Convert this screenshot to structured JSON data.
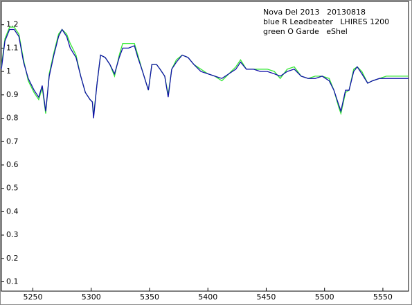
{
  "chart_data": {
    "type": "line",
    "title": "Nova Del 2013   20130818",
    "x": [
      5223,
      5226,
      5230,
      5234,
      5238,
      5242,
      5246,
      5251,
      5255,
      5258,
      5261,
      5264,
      5268,
      5272,
      5275,
      5279,
      5282,
      5287,
      5291,
      5295,
      5299,
      5301,
      5302,
      5305,
      5308,
      5312,
      5316,
      5320,
      5324,
      5327,
      5332,
      5337,
      5340,
      5344,
      5349,
      5352,
      5356,
      5359,
      5363,
      5366,
      5369,
      5373,
      5378,
      5383,
      5388,
      5394,
      5400,
      5406,
      5412,
      5418,
      5424,
      5428,
      5433,
      5439,
      5445,
      5451,
      5457,
      5462,
      5468,
      5474,
      5480,
      5486,
      5492,
      5498,
      5504,
      5508,
      5512,
      5514,
      5518,
      5521,
      5525,
      5528,
      5532,
      5537,
      5541,
      5547,
      5553,
      5559,
      5565,
      5572
    ],
    "series": [
      {
        "name": "blue R Leadbeater   LHIRES 1200",
        "color": "#1010a8",
        "values": [
          1.01,
          1.13,
          1.18,
          1.18,
          1.15,
          1.04,
          0.97,
          0.92,
          0.89,
          0.94,
          0.83,
          0.98,
          1.07,
          1.15,
          1.18,
          1.15,
          1.1,
          1.06,
          0.98,
          0.91,
          0.88,
          0.87,
          0.8,
          0.95,
          1.07,
          1.06,
          1.03,
          0.99,
          1.06,
          1.1,
          1.1,
          1.11,
          1.06,
          1.0,
          0.92,
          1.03,
          1.03,
          1.01,
          0.98,
          0.89,
          1.01,
          1.04,
          1.07,
          1.06,
          1.03,
          1.0,
          0.99,
          0.98,
          0.97,
          0.99,
          1.01,
          1.04,
          1.01,
          1.01,
          1.0,
          1.0,
          0.99,
          0.98,
          1.0,
          1.01,
          0.98,
          0.97,
          0.97,
          0.98,
          0.96,
          0.92,
          0.86,
          0.83,
          0.92,
          0.92,
          1.0,
          1.02,
          0.99,
          0.95,
          0.96,
          0.97,
          0.97,
          0.97,
          0.97,
          0.97
        ]
      },
      {
        "name": "green O Garde   eShel",
        "color": "#33e833",
        "values": [
          1.02,
          1.14,
          1.19,
          1.19,
          1.16,
          1.05,
          0.96,
          0.91,
          0.88,
          0.93,
          0.82,
          0.99,
          1.08,
          1.16,
          1.18,
          1.16,
          1.12,
          1.07,
          0.98,
          0.91,
          0.88,
          0.87,
          0.81,
          0.95,
          1.07,
          1.06,
          1.03,
          0.98,
          1.07,
          1.12,
          1.12,
          1.12,
          1.07,
          1.0,
          0.92,
          1.03,
          1.03,
          1.01,
          0.98,
          0.9,
          1.01,
          1.05,
          1.07,
          1.06,
          1.03,
          1.01,
          0.99,
          0.98,
          0.96,
          0.99,
          1.02,
          1.05,
          1.01,
          1.01,
          1.01,
          1.01,
          1.0,
          0.97,
          1.01,
          1.02,
          0.98,
          0.97,
          0.98,
          0.98,
          0.97,
          0.92,
          0.85,
          0.82,
          0.91,
          0.92,
          1.01,
          1.02,
          1.0,
          0.95,
          0.96,
          0.97,
          0.98,
          0.98,
          0.98,
          0.98
        ]
      }
    ],
    "xlim": [
      5223,
      5572
    ],
    "ylim": [
      0.06,
      1.3
    ],
    "xticks": [
      5250,
      5300,
      5350,
      5400,
      5450,
      5500,
      5550
    ],
    "yticks": [
      0.1,
      0.2,
      0.3,
      0.4,
      0.5,
      0.6,
      0.7,
      0.8,
      0.9,
      1,
      1.1,
      1.2
    ]
  }
}
